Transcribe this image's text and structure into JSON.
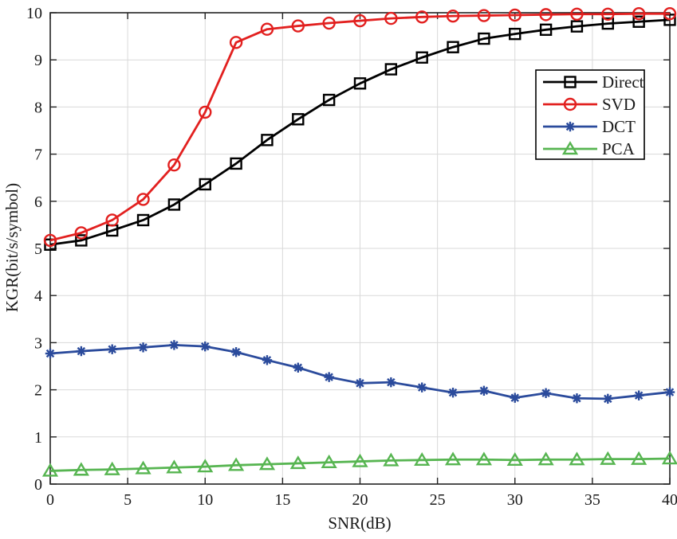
{
  "figure": {
    "background": "#ffffff"
  },
  "colors": {
    "grid": "#d9d9d9",
    "frame": "#222222",
    "text": "#1a1a1a",
    "legend_border": "#000000",
    "legend_background": "#ffffff"
  },
  "chart_data": {
    "type": "line",
    "title": "",
    "xlabel": "SNR(dB)",
    "ylabel": "KGR(bit/s/symbol)",
    "xlim": [
      0,
      40
    ],
    "ylim": [
      0,
      10
    ],
    "xticks": [
      0,
      5,
      10,
      15,
      20,
      25,
      30,
      35,
      40
    ],
    "yticks": [
      0,
      1,
      2,
      3,
      4,
      5,
      6,
      7,
      8,
      9,
      10
    ],
    "grid": true,
    "legend_position": "upper right",
    "x": [
      0,
      2,
      4,
      6,
      8,
      10,
      12,
      14,
      16,
      18,
      20,
      22,
      24,
      26,
      28,
      30,
      32,
      34,
      36,
      38,
      40
    ],
    "series": [
      {
        "name": "Direct",
        "color": "#000000",
        "marker": "square",
        "values": [
          5.08,
          5.17,
          5.38,
          5.6,
          5.93,
          6.36,
          6.8,
          7.3,
          7.74,
          8.15,
          8.5,
          8.8,
          9.05,
          9.27,
          9.45,
          9.55,
          9.64,
          9.71,
          9.77,
          9.81,
          9.85
        ]
      },
      {
        "name": "SVD",
        "color": "#e2201f",
        "marker": "circle",
        "values": [
          5.17,
          5.33,
          5.6,
          6.04,
          6.77,
          7.89,
          9.37,
          9.65,
          9.72,
          9.78,
          9.83,
          9.88,
          9.91,
          9.93,
          9.94,
          9.95,
          9.96,
          9.97,
          9.97,
          9.98,
          9.98
        ]
      },
      {
        "name": "DCT",
        "color": "#2b4b9c",
        "marker": "asterisk",
        "values": [
          2.77,
          2.82,
          2.86,
          2.9,
          2.95,
          2.92,
          2.8,
          2.63,
          2.47,
          2.27,
          2.14,
          2.16,
          2.05,
          1.94,
          1.98,
          1.83,
          1.93,
          1.82,
          1.81,
          1.88,
          1.95
        ]
      },
      {
        "name": "PCA",
        "color": "#57b551",
        "marker": "triangle",
        "values": [
          0.28,
          0.3,
          0.31,
          0.33,
          0.35,
          0.37,
          0.4,
          0.42,
          0.44,
          0.46,
          0.48,
          0.5,
          0.51,
          0.52,
          0.52,
          0.51,
          0.52,
          0.52,
          0.53,
          0.53,
          0.54
        ]
      }
    ]
  }
}
